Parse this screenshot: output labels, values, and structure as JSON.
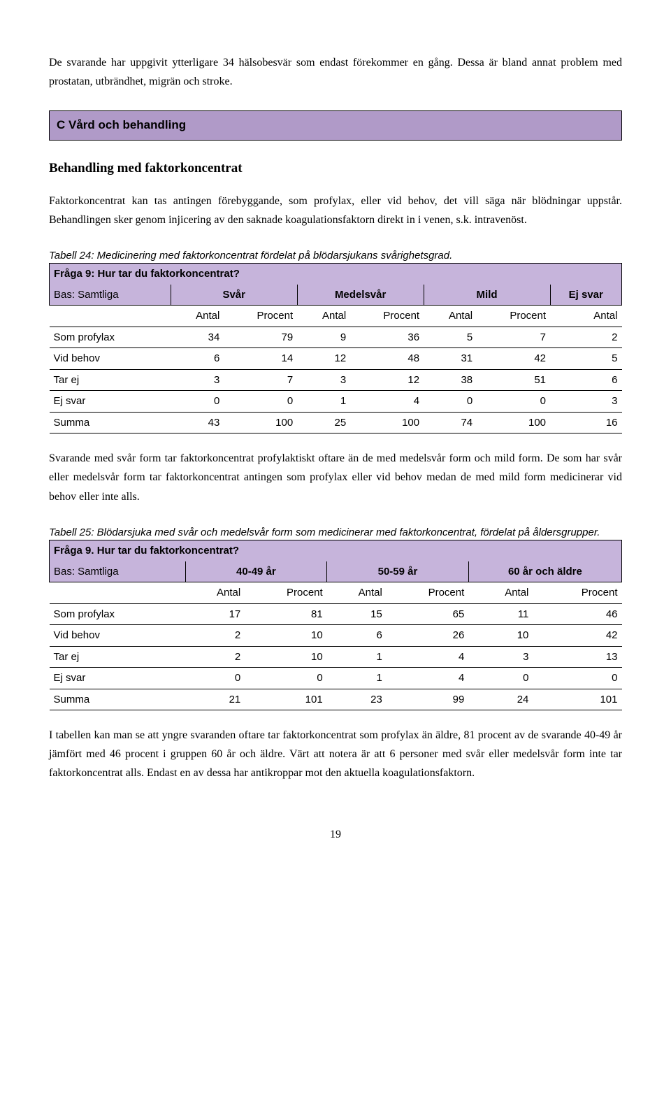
{
  "intro_para": "De svarande har uppgivit ytterligare 34 hälsobesvär som endast förekommer en gång. Dessa är bland annat problem med prostatan, utbrändhet, migrän och stroke.",
  "section_header": "C Vård och behandling",
  "subsection_title": "Behandling med faktorkoncentrat",
  "body1": "Faktorkoncentrat kan tas antingen förebyggande, som profylax, eller vid behov, det vill säga när blödningar uppstår. Behandlingen sker genom injicering av den saknade koagulationsfaktorn direkt in i venen, s.k. intravenöst.",
  "table24": {
    "caption": "Tabell 24: Medicinering med faktorkoncentrat fördelat på blödarsjukans svårighetsgrad.",
    "question": "Fråga 9: Hur tar du faktorkoncentrat?",
    "base_label": "Bas: Samtliga",
    "groups": [
      "Svår",
      "Medelsvår",
      "Mild",
      "Ej svar"
    ],
    "sub_antal": "Antal",
    "sub_procent": "Procent",
    "rows": [
      {
        "label": "Som profylax",
        "vals": [
          "34",
          "79",
          "9",
          "36",
          "5",
          "7",
          "2"
        ]
      },
      {
        "label": "Vid behov",
        "vals": [
          "6",
          "14",
          "12",
          "48",
          "31",
          "42",
          "5"
        ]
      },
      {
        "label": "Tar ej",
        "vals": [
          "3",
          "7",
          "3",
          "12",
          "38",
          "51",
          "6"
        ]
      },
      {
        "label": "Ej svar",
        "vals": [
          "0",
          "0",
          "1",
          "4",
          "0",
          "0",
          "3"
        ]
      },
      {
        "label": "Summa",
        "vals": [
          "43",
          "100",
          "25",
          "100",
          "74",
          "100",
          "16"
        ]
      }
    ]
  },
  "body2": "Svarande med svår form tar faktorkoncentrat profylaktiskt oftare än de med medelsvår form och mild form. De som har svår eller medelsvår form tar faktorkoncentrat antingen som profylax eller vid behov medan de med mild form medicinerar vid behov eller inte alls.",
  "table25": {
    "caption": "Tabell 25: Blödarsjuka med svår och medelsvår form som medicinerar med faktorkoncentrat, fördelat på åldersgrupper.",
    "question": "Fråga 9. Hur tar du faktorkoncentrat?",
    "base_label": "Bas: Samtliga",
    "groups": [
      "40-49 år",
      "50-59 år",
      "60 år och äldre"
    ],
    "sub_antal": "Antal",
    "sub_procent": "Procent",
    "rows": [
      {
        "label": "Som profylax",
        "vals": [
          "17",
          "81",
          "15",
          "65",
          "11",
          "46"
        ]
      },
      {
        "label": "Vid behov",
        "vals": [
          "2",
          "10",
          "6",
          "26",
          "10",
          "42"
        ]
      },
      {
        "label": "Tar ej",
        "vals": [
          "2",
          "10",
          "1",
          "4",
          "3",
          "13"
        ]
      },
      {
        "label": "Ej svar",
        "vals": [
          "0",
          "0",
          "1",
          "4",
          "0",
          "0"
        ]
      },
      {
        "label": "Summa",
        "vals": [
          "21",
          "101",
          "23",
          "99",
          "24",
          "101"
        ]
      }
    ]
  },
  "body3": "I tabellen kan man se att yngre svaranden oftare tar faktorkoncentrat som profylax än äldre, 81 procent av de svarande 40-49 år jämfört med 46 procent i gruppen 60 år och äldre. Värt att notera är att 6 personer med svår eller medelsvår form inte tar faktorkoncentrat alls. Endast en av dessa har antikroppar mot den aktuella koagulationsfaktorn.",
  "page_number": "19",
  "colors": {
    "header_bg": "#b09ac8",
    "table_hdr_bg": "#c6b4db",
    "border": "#000000",
    "text": "#000000",
    "page_bg": "#ffffff"
  },
  "fonts": {
    "body_family": "Georgia, serif",
    "table_family": "Arial, sans-serif",
    "body_size_pt": 12,
    "table_size_pt": 11,
    "caption_style": "italic"
  }
}
